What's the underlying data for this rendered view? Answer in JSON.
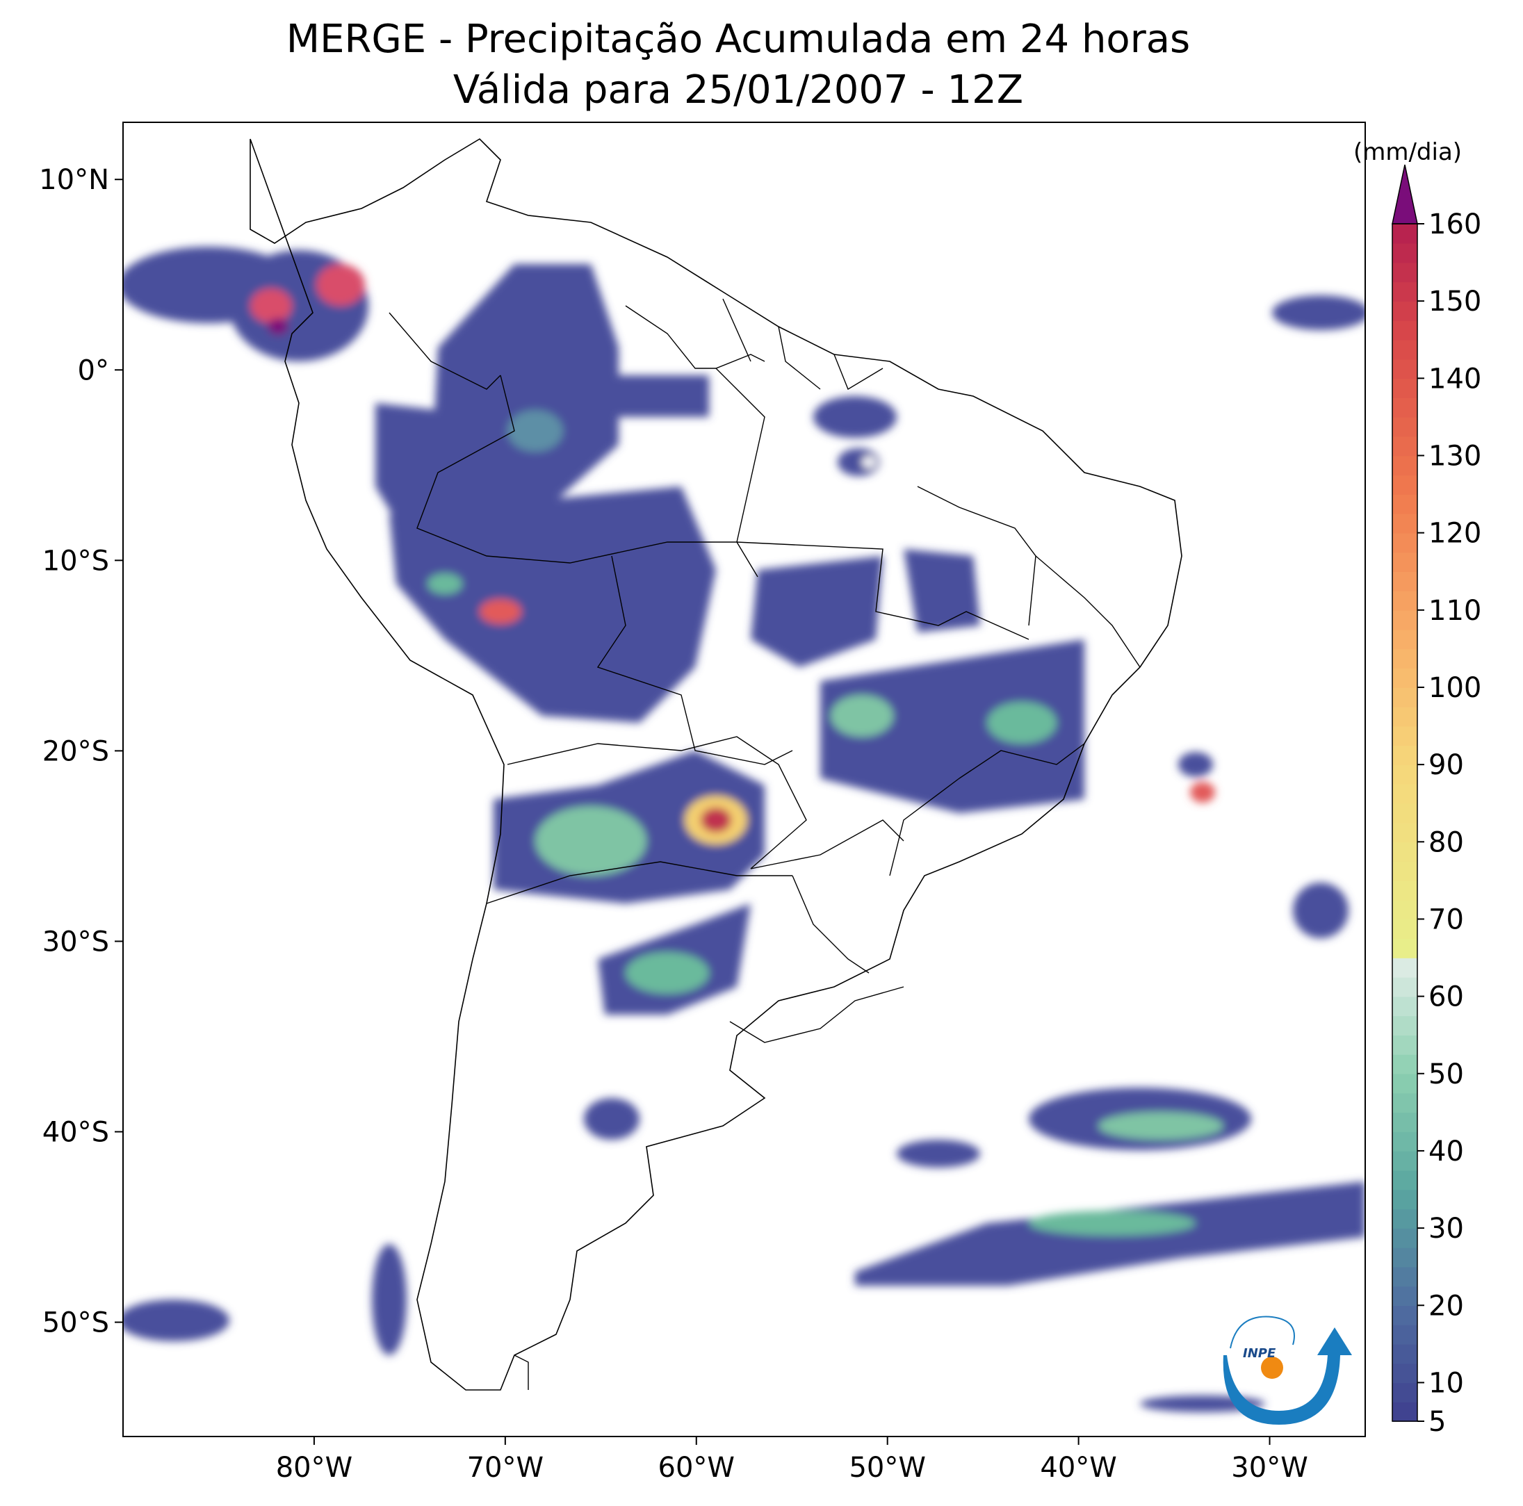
{
  "title": {
    "line1": "MERGE - Precipitação Acumulada em 24 horas",
    "line2": "Válida para 25/01/2007 - 12Z"
  },
  "map": {
    "lon_range": [
      -90,
      -25
    ],
    "lat_range": [
      -56,
      13
    ],
    "lat_ticks": [
      {
        "value": 10,
        "label": "10°N"
      },
      {
        "value": 0,
        "label": "0°"
      },
      {
        "value": -10,
        "label": "10°S"
      },
      {
        "value": -20,
        "label": "20°S"
      },
      {
        "value": -30,
        "label": "30°S"
      },
      {
        "value": -40,
        "label": "40°S"
      },
      {
        "value": -50,
        "label": "50°S"
      }
    ],
    "lon_ticks": [
      {
        "value": -80,
        "label": "80°W"
      },
      {
        "value": -70,
        "label": "70°W"
      },
      {
        "value": -60,
        "label": "60°W"
      },
      {
        "value": -50,
        "label": "50°W"
      },
      {
        "value": -40,
        "label": "40°W"
      },
      {
        "value": -30,
        "label": "30°W"
      }
    ]
  },
  "colorbar": {
    "unit_label": "(mm/dia)",
    "min": 5,
    "max": 160,
    "ticks": [
      "5",
      "10",
      "20",
      "30",
      "40",
      "50",
      "60",
      "70",
      "80",
      "90",
      "100",
      "110",
      "120",
      "130",
      "140",
      "150",
      "160"
    ],
    "extend_color": "#7a0d7a"
  },
  "logo": {
    "text": "INPE"
  }
}
